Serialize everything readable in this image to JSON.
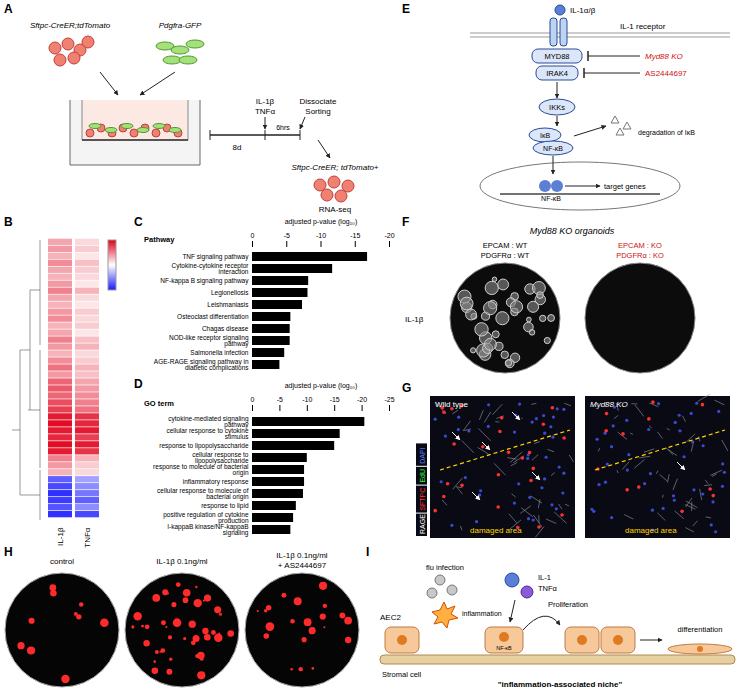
{
  "panel_letters": [
    "A",
    "B",
    "C",
    "D",
    "E",
    "F",
    "G",
    "H",
    "I"
  ],
  "A": {
    "mouse1": "Sftpc-CreER;tdTomato",
    "mouse2": "Pdgfra-GFP",
    "treatment": [
      "IL-1β",
      "TNFα"
    ],
    "duration": "6hrs",
    "culture": "8d",
    "steps": [
      "Dissociate",
      "Sorting"
    ],
    "sorted": "Sftpc-CreER; tdTomato+",
    "assay": "RNA-seq"
  },
  "chart_data": [
    {
      "type": "heatmap",
      "panel": "B",
      "columns": [
        "IL-1β",
        "TNFα"
      ],
      "rows": [
        [
          0.35,
          0.15
        ],
        [
          0.4,
          0.2
        ],
        [
          0.3,
          0.1
        ],
        [
          0.45,
          0.25
        ],
        [
          0.35,
          0.2
        ],
        [
          0.3,
          0.15
        ],
        [
          0.4,
          0.1
        ],
        [
          0.5,
          0.3
        ],
        [
          0.35,
          0.15
        ],
        [
          0.3,
          0.1
        ],
        [
          0.4,
          0.2
        ],
        [
          0.45,
          0.15
        ],
        [
          0.3,
          0.2
        ],
        [
          0.35,
          0.1
        ],
        [
          0.5,
          0.25
        ],
        [
          0.4,
          0.3
        ],
        [
          0.3,
          0.15
        ],
        [
          0.45,
          0.2
        ],
        [
          0.55,
          0.3
        ],
        [
          0.4,
          0.25
        ],
        [
          0.6,
          0.35
        ],
        [
          0.65,
          0.4
        ],
        [
          0.6,
          0.45
        ],
        [
          0.7,
          0.5
        ],
        [
          0.75,
          0.55
        ],
        [
          0.9,
          0.8
        ],
        [
          0.95,
          0.85
        ],
        [
          0.9,
          0.9
        ],
        [
          0.85,
          0.75
        ],
        [
          0.95,
          0.9
        ],
        [
          0.9,
          0.8
        ],
        [
          0.5,
          0.3
        ],
        [
          0.4,
          0.2
        ],
        [
          0.3,
          0.15
        ],
        [
          -0.7,
          -0.4
        ],
        [
          -0.8,
          -0.5
        ],
        [
          -0.9,
          -0.6
        ],
        [
          -0.85,
          -0.7
        ],
        [
          -0.75,
          -0.5
        ],
        [
          -0.9,
          -0.8
        ]
      ],
      "colorbar": {
        "range": [
          -1,
          1
        ],
        "colors": [
          "#1a1aff",
          "#ffffff",
          "#e0001a"
        ]
      }
    },
    {
      "type": "bar",
      "panel": "C",
      "orientation": "horizontal",
      "y_label": "Pathway",
      "x_label": "adjusted p-value (log₁₀)",
      "categories": [
        "TNF signaling pathway",
        "Cytokine-cytokine receptor interaction",
        "NF-kappa B signaling pathway",
        "Legionellosis",
        "Leishmaniasis",
        "Osteoclast differentiation",
        "Chagas disease",
        "NOD-like receptor signaling pathway",
        "Salmonella infection",
        "AGE-RAGE signaling pathway in diabetic complications"
      ],
      "values": [
        -16.8,
        -11.7,
        -8.2,
        -8.1,
        -7.3,
        -5.6,
        -5.5,
        -5.5,
        -4.7,
        -4.0
      ],
      "xlim": [
        0,
        -20
      ],
      "xticks": [
        0,
        -5,
        -10,
        -15,
        -20
      ],
      "color": "#000000"
    },
    {
      "type": "bar",
      "panel": "D",
      "orientation": "horizontal",
      "y_label": "GO term",
      "x_label": "adjusted p-value (log₁₀)",
      "categories": [
        "cytokine-mediated signaling pathway",
        "cellular response to cytokine stimulus",
        "response to lipopolysaccharide",
        "cellular response to lipopolysaccharide",
        "response to molecule of bacterial origin",
        "inflammatory response",
        "cellular response to molecule of bacterial origin",
        "response to lipid",
        "positive regulation of cytokine production",
        "I-kappaB kinase/NF-kappaB signaling"
      ],
      "values": [
        -20.5,
        -16.0,
        -15.0,
        -10.0,
        -9.5,
        -9.5,
        -9.3,
        -8.0,
        -7.5,
        -7.0
      ],
      "xlim": [
        0,
        -25
      ],
      "xticks": [
        0,
        -5,
        -10,
        -15,
        -20,
        -25
      ],
      "color": "#000000"
    }
  ],
  "E": {
    "ligand": "IL-1α/β",
    "receptor": "IL-1 receptor",
    "adaptor": "MYD88",
    "kinase": "IRAK4",
    "inhibitors": [
      "Myd88 KO",
      "AS2444697"
    ],
    "ikk": "IKKs",
    "ikb": "IκB",
    "nfkb": "NF-κB",
    "degradation": "degradation of IκB",
    "nuclear": "NF-κB",
    "genes": "target genes"
  },
  "F": {
    "title": "Myd88 KO organoids",
    "left": [
      "EPCAM : WT",
      "PDGFRα : WT"
    ],
    "right": [
      "EPCAM : KO",
      "PDGFRα : KO"
    ],
    "row_label": "IL-1β"
  },
  "G": {
    "legend": [
      {
        "text": "RAGE",
        "color": "#ffffff"
      },
      {
        "text": "SFTPC",
        "color": "#ff3030"
      },
      {
        "text": "EdU",
        "color": "#30ff30"
      },
      {
        "text": "DAPI",
        "color": "#5a7bff"
      }
    ],
    "images": [
      "Wild type",
      "Myd88 KO"
    ],
    "region": "damaged area"
  },
  "H": {
    "wells": [
      [
        "control"
      ],
      [
        "IL-1β 0.1ng/ml"
      ],
      [
        "IL-1β 0.1ng/ml",
        "+ AS2444697"
      ]
    ]
  },
  "I": {
    "cell": "AEC2",
    "stroma": "Stromal cell",
    "infection": "flu infection",
    "inflammation": "inflammation",
    "cytokines": [
      "IL-1",
      "TNFα"
    ],
    "proliferation": "Proliferation",
    "nfkb": "NF-κB",
    "differentiation": "differentiation",
    "caption": "\"inflammation-associated niche\""
  }
}
